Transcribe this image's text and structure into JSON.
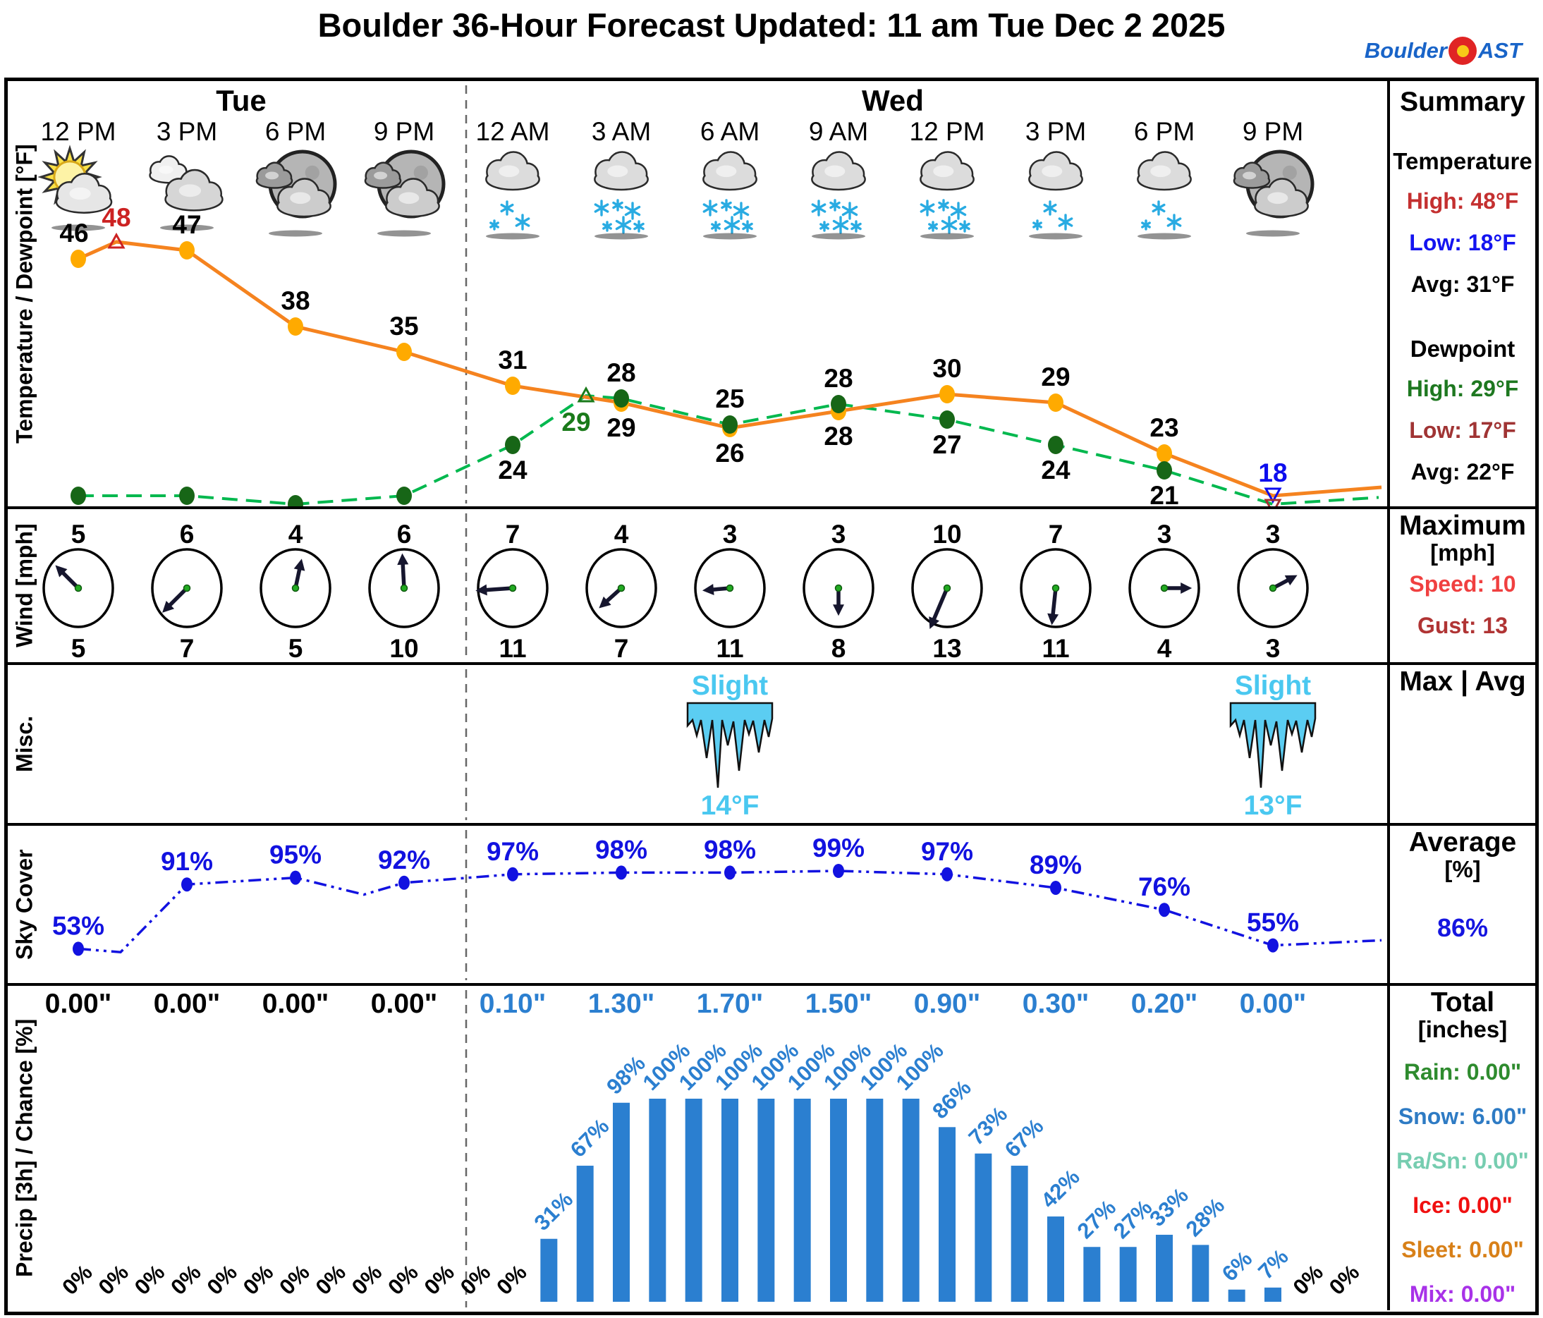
{
  "title": "Boulder 36-Hour Forecast Updated: 11 am Tue Dec 2 2025",
  "logo": {
    "prefix": "Boulder",
    "suffix": "AST"
  },
  "days": [
    {
      "label": "Tue",
      "from": 0,
      "to": 3
    },
    {
      "label": "Wed",
      "from": 4,
      "to": 11
    }
  ],
  "times": [
    "12 PM",
    "3 PM",
    "6 PM",
    "9 PM",
    "12 AM",
    "3 AM",
    "6 AM",
    "9 AM",
    "12 PM",
    "3 PM",
    "6 PM",
    "9 PM"
  ],
  "icons": [
    "partly-cloudy",
    "mostly-cloudy",
    "cloudy-night",
    "cloudy-night",
    "snow-light",
    "snow-heavy",
    "snow-heavy",
    "snow-heavy",
    "snow-heavy",
    "snow-light",
    "snow-light",
    "cloudy-night"
  ],
  "colors": {
    "temp_line": "#f5831f",
    "temp_marker": "#ffaa00",
    "dew_line": "#00b84e",
    "dew_marker": "#176617",
    "high_red": "#cc2222",
    "low_blue": "#0d0dee",
    "dew_low_red": "#a33030",
    "sky_blue": "#1212e0",
    "bar_blue": "#2b7fd0",
    "snowflake": "#29abe2",
    "ice_cyan": "#4ac8f0",
    "speed_red": "#f04040",
    "gust_red": "#b03434"
  },
  "chart_data": [
    {
      "id": "temperature_dewpoint",
      "type": "line",
      "ylabel": "Temperature / Dewpoint [°F]",
      "x": [
        "12 PM Tue",
        "3 PM",
        "6 PM",
        "9 PM",
        "12 AM Wed",
        "3 AM",
        "6 AM",
        "9 AM",
        "12 PM",
        "3 PM",
        "6 PM",
        "9 PM"
      ],
      "series": [
        {
          "name": "Temperature",
          "values": [
            46,
            47,
            38,
            35,
            31,
            29,
            26,
            28,
            30,
            29,
            23,
            18
          ],
          "label_side": [
            "a",
            "a",
            "a",
            "a",
            "a",
            "b",
            "b",
            "b",
            "a",
            "a",
            "a",
            ""
          ]
        },
        {
          "name": "Dewpoint",
          "values": [
            18,
            18,
            17,
            18,
            24,
            28,
            25,
            28,
            27,
            24,
            21,
            17
          ],
          "label_side": [
            "b",
            "b",
            "b",
            "b",
            "b",
            "a",
            "a",
            "a",
            "b",
            "b",
            "b",
            ""
          ]
        }
      ],
      "annotations": {
        "temp_high": {
          "value": 48,
          "hour_index": 1
        },
        "dew_high": {
          "value": 29,
          "hour_index": 14
        },
        "temp_low": {
          "value": 18,
          "hour_index": 33
        },
        "dew_low": {
          "value": 17,
          "hour_index": 33
        }
      },
      "ylim": [
        15,
        50
      ]
    },
    {
      "id": "wind",
      "type": "wind-barbs",
      "ylabel": "Wind [mph]",
      "speed": [
        5,
        6,
        4,
        6,
        7,
        4,
        3,
        3,
        10,
        7,
        3,
        3
      ],
      "gust": [
        5,
        7,
        5,
        10,
        11,
        7,
        11,
        8,
        13,
        11,
        4,
        3
      ],
      "direction_deg_toward": [
        315,
        225,
        12,
        357,
        266,
        228,
        265,
        180,
        203,
        186,
        90,
        62
      ]
    },
    {
      "id": "misc",
      "type": "events",
      "ylabel": "Misc.",
      "events": [
        {
          "col": 6,
          "severity": "Slight",
          "value": "14°F",
          "kind": "icicle"
        },
        {
          "col": 11,
          "severity": "Slight",
          "value": "13°F",
          "kind": "icicle"
        }
      ]
    },
    {
      "id": "sky_cover",
      "type": "line",
      "ylabel": "Sky Cover",
      "values": [
        53,
        91,
        95,
        92,
        97,
        98,
        98,
        99,
        97,
        89,
        76,
        55
      ],
      "unit": "%",
      "ylim": [
        0,
        100
      ]
    },
    {
      "id": "precip",
      "type": "bar",
      "ylabel": "Precip [3h] / Chance [%]",
      "amounts_3h": [
        "0.00\"",
        "0.00\"",
        "0.00\"",
        "0.00\"",
        "0.10\"",
        "1.30\"",
        "1.70\"",
        "1.50\"",
        "0.90\"",
        "0.30\"",
        "0.20\"",
        "0.00\""
      ],
      "wed_start_index": 4,
      "chance_hourly": [
        0,
        0,
        0,
        0,
        0,
        0,
        0,
        0,
        0,
        0,
        0,
        0,
        0,
        31,
        67,
        98,
        100,
        100,
        100,
        100,
        100,
        100,
        100,
        100,
        86,
        73,
        67,
        42,
        27,
        27,
        33,
        28,
        6,
        7,
        0,
        0
      ],
      "ylim": [
        0,
        100
      ]
    }
  ],
  "sidebar": {
    "summary": {
      "title": "Summary",
      "temperature": {
        "heading": "Temperature",
        "high": {
          "label": "High:",
          "value": "48°F",
          "color": "#c43030"
        },
        "low": {
          "label": "Low:",
          "value": "18°F",
          "color": "#1414f0"
        },
        "avg": {
          "label": "Avg:",
          "value": "31°F",
          "color": "#000000"
        }
      },
      "dewpoint": {
        "heading": "Dewpoint",
        "high": {
          "label": "High:",
          "value": "29°F",
          "color": "#1e7820"
        },
        "low": {
          "label": "Low:",
          "value": "17°F",
          "color": "#a03434"
        },
        "avg": {
          "label": "Avg:",
          "value": "22°F",
          "color": "#000000"
        }
      }
    },
    "wind": {
      "title": "Maximum",
      "unit": "[mph]",
      "speed": {
        "label": "Speed:",
        "value": "10",
        "color": "#f04040"
      },
      "gust": {
        "label": "Gust:",
        "value": "13",
        "color": "#b03434"
      }
    },
    "misc": {
      "title": "Max | Avg"
    },
    "sky": {
      "title": "Average",
      "unit": "[%]",
      "value": "86%"
    },
    "precip": {
      "title": "Total",
      "unit": "[inches]",
      "rows": [
        {
          "label": "Rain:",
          "value": "0.00\"",
          "color": "#2e8b2e"
        },
        {
          "label": "Snow:",
          "value": "6.00\"",
          "color": "#2e7bc4"
        },
        {
          "label": "Ra/Sn:",
          "value": "0.00\"",
          "color": "#76cdb0"
        },
        {
          "label": "Ice:",
          "value": "0.00\"",
          "color": "#f01010"
        },
        {
          "label": "Sleet:",
          "value": "0.00\"",
          "color": "#d88018"
        },
        {
          "label": "Mix:",
          "value": "0.00\"",
          "color": "#a832e8"
        }
      ]
    }
  }
}
